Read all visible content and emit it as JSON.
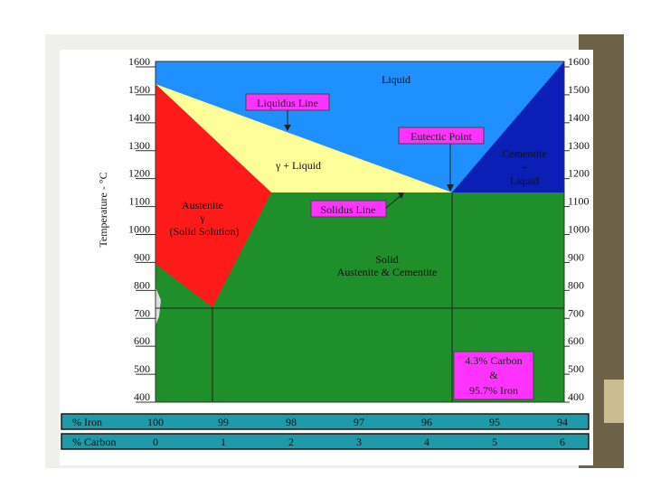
{
  "colors": {
    "liquid": "#1e90ff",
    "liquid_plus_gamma": "#ffff99",
    "austenite": "#ff1a1a",
    "cementite_liquid": "#0a1fb5",
    "solid": "#1f8f2a",
    "callout": "#ff33ff",
    "scale_row": "#1e9aa8",
    "frame_dark": "#6b6247"
  },
  "y_axis": {
    "title": "Temperature - °C",
    "ticks": [
      "1600",
      "1500",
      "1400",
      "1300",
      "1200",
      "1100",
      "1000",
      "900",
      "800",
      "700",
      "600",
      "500",
      "400"
    ]
  },
  "regions": {
    "liquid": "Liquid",
    "gamma_liquid": "γ + Liquid",
    "austenite_line1": "Austenite",
    "austenite_line2": "γ",
    "austenite_line3": "(Solid Solution)",
    "cementite_line1": "Cementite",
    "cementite_line2": "+",
    "cementite_line3": "Liquid",
    "solid_line1": "Solid",
    "solid_line2": "Austenite & Cementite"
  },
  "callouts": {
    "liquidus": "Liquidus Line",
    "eutectic": "Eutectic Point",
    "solidus": "Solidus Line",
    "composition_line1": "4.3% Carbon",
    "composition_line2": "&",
    "composition_line3": "95.7% Iron"
  },
  "scale_rows": {
    "iron_label": "% Iron",
    "iron_values": [
      "100",
      "99",
      "98",
      "97",
      "96",
      "95",
      "94"
    ],
    "carbon_label": "% Carbon",
    "carbon_values": [
      "0",
      "1",
      "2",
      "3",
      "4",
      "5",
      "6"
    ]
  }
}
